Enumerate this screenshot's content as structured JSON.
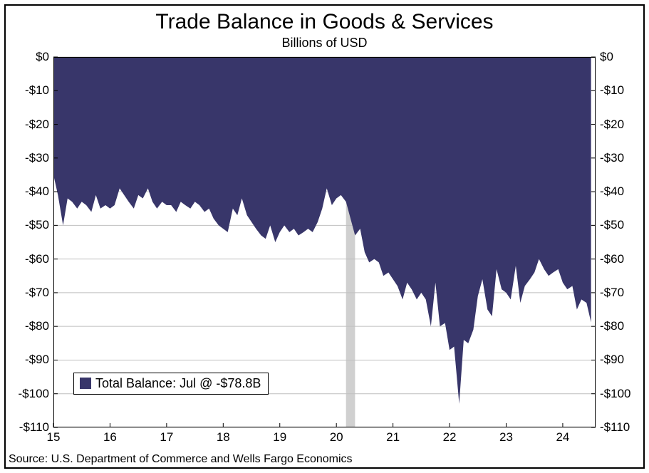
{
  "chart": {
    "type": "area",
    "title": "Trade Balance in Goods & Services",
    "subtitle": "Billions of USD",
    "source": "Source: U.S. Department of Commerce and Wells Fargo Economics",
    "title_fontsize": 30,
    "subtitle_fontsize": 18,
    "tick_fontsize": 17,
    "source_fontsize": 16,
    "legend_fontsize": 18,
    "background_color": "#ffffff",
    "frame_color": "#000000",
    "series_color": "#38366a",
    "recession_color": "#d0d0d0",
    "gridline_color": "#bfbfbf",
    "xlim": [
      15,
      24.58
    ],
    "ylim": [
      -110,
      0
    ],
    "y_ticks": [
      0,
      -10,
      -20,
      -30,
      -40,
      -50,
      -60,
      -70,
      -80,
      -90,
      -100,
      -110
    ],
    "y_tick_labels": [
      "$0",
      "-$10",
      "-$20",
      "-$30",
      "-$40",
      "-$50",
      "-$60",
      "-$70",
      "-$80",
      "-$90",
      "-$100",
      "-$110"
    ],
    "x_ticks": [
      15,
      16,
      17,
      18,
      19,
      20,
      21,
      22,
      23,
      24
    ],
    "x_tick_labels": [
      "15",
      "16",
      "17",
      "18",
      "19",
      "20",
      "21",
      "22",
      "23",
      "24"
    ],
    "recession_band": [
      20.17,
      20.33
    ],
    "legend": {
      "label": "Total Balance: Jul @ -$78.8B",
      "swatch_color": "#38366a"
    },
    "series": {
      "name": "Total Balance",
      "x": [
        15.0,
        15.08,
        15.17,
        15.25,
        15.33,
        15.42,
        15.5,
        15.58,
        15.67,
        15.75,
        15.83,
        15.92,
        16.0,
        16.08,
        16.17,
        16.25,
        16.33,
        16.42,
        16.5,
        16.58,
        16.67,
        16.75,
        16.83,
        16.92,
        17.0,
        17.08,
        17.17,
        17.25,
        17.33,
        17.42,
        17.5,
        17.58,
        17.67,
        17.75,
        17.83,
        17.92,
        18.0,
        18.08,
        18.17,
        18.25,
        18.33,
        18.42,
        18.5,
        18.58,
        18.67,
        18.75,
        18.83,
        18.92,
        19.0,
        19.08,
        19.17,
        19.25,
        19.33,
        19.42,
        19.5,
        19.58,
        19.67,
        19.75,
        19.83,
        19.92,
        20.0,
        20.08,
        20.17,
        20.25,
        20.33,
        20.42,
        20.5,
        20.58,
        20.67,
        20.75,
        20.83,
        20.92,
        21.0,
        21.08,
        21.17,
        21.25,
        21.33,
        21.42,
        21.5,
        21.58,
        21.67,
        21.75,
        21.83,
        21.92,
        22.0,
        22.08,
        22.17,
        22.25,
        22.33,
        22.42,
        22.5,
        22.58,
        22.67,
        22.75,
        22.83,
        22.92,
        23.0,
        23.08,
        23.17,
        23.25,
        23.33,
        23.42,
        23.5,
        23.58,
        23.67,
        23.75,
        23.83,
        23.92,
        24.0,
        24.08,
        24.17,
        24.25,
        24.33,
        24.42,
        24.5
      ],
      "y": [
        -35,
        -41,
        -50,
        -42,
        -43,
        -45,
        -43,
        -44,
        -46,
        -41,
        -45,
        -44,
        -45,
        -44,
        -39,
        -41,
        -43,
        -45,
        -41,
        -42,
        -39,
        -43,
        -45,
        -43,
        -44,
        -44,
        -46,
        -43,
        -44,
        -45,
        -43,
        -44,
        -46,
        -45,
        -48,
        -50,
        -51,
        -52,
        -45,
        -47,
        -42,
        -47,
        -49,
        -51,
        -53,
        -54,
        -50,
        -55,
        -52,
        -50,
        -52,
        -51,
        -53,
        -52,
        -51,
        -52,
        -49,
        -45,
        -39,
        -44,
        -42,
        -41,
        -43,
        -48,
        -53,
        -51,
        -58,
        -61,
        -60,
        -61,
        -65,
        -64,
        -66,
        -68,
        -72,
        -67,
        -69,
        -72,
        -70,
        -72,
        -80,
        -67,
        -80,
        -79,
        -87,
        -86,
        -103,
        -84,
        -85,
        -81,
        -71,
        -66,
        -75,
        -77,
        -63,
        -69,
        -70,
        -72,
        -62,
        -73,
        -68,
        -66,
        -64,
        -60,
        -63,
        -65,
        -64,
        -63,
        -67,
        -69,
        -68,
        -75,
        -72,
        -73,
        -78.8
      ]
    }
  }
}
